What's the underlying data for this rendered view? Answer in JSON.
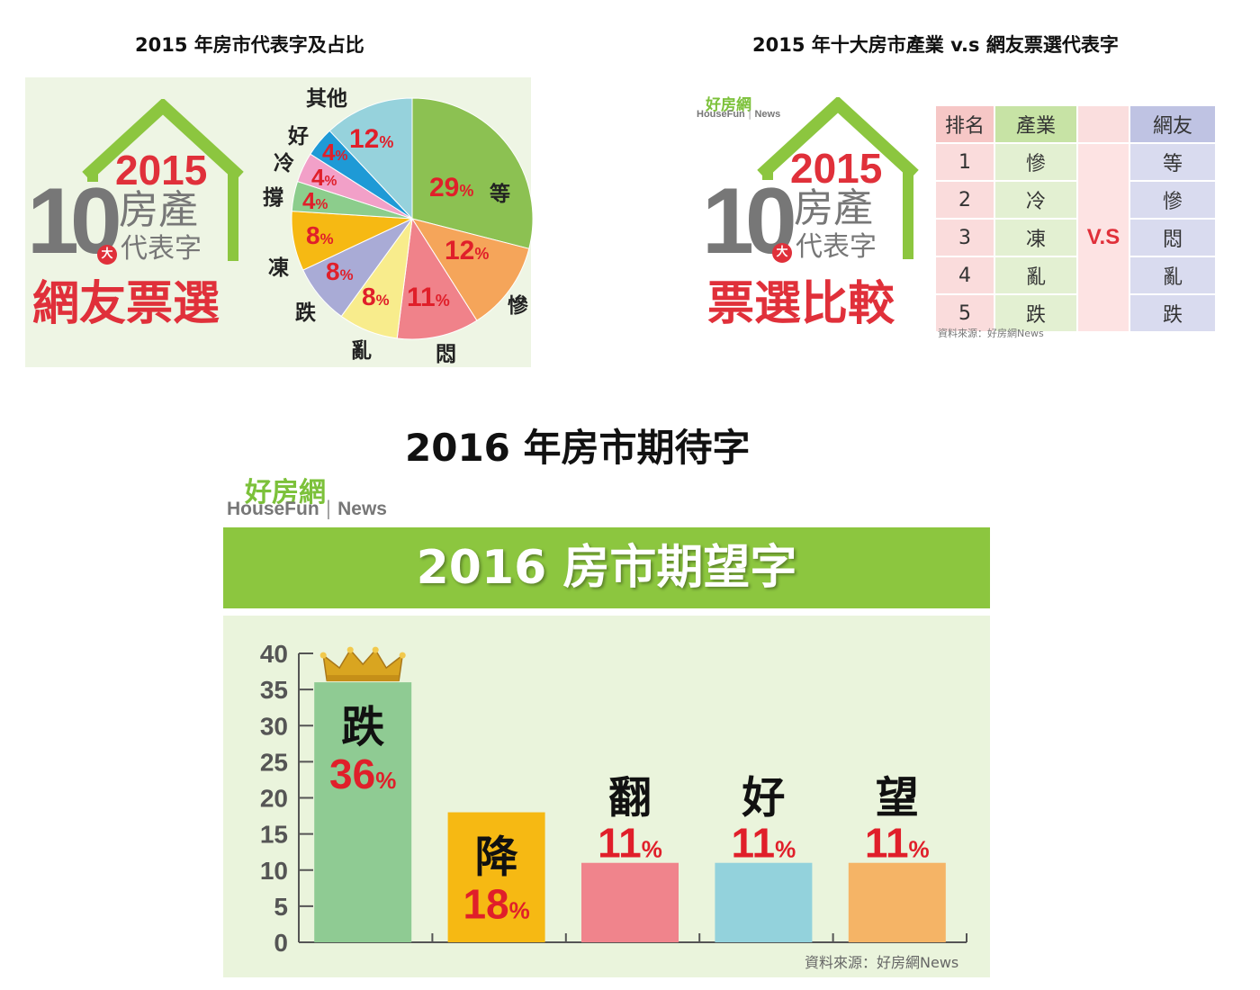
{
  "pie_panel": {
    "title": "2015 年房市代表字及占比",
    "badge": {
      "num": "10",
      "year": "2015",
      "line1": "房產",
      "line2": "代表字",
      "circle": "大",
      "caption": "網友票選"
    }
  },
  "table_panel": {
    "title": "2015 年十大房市產業 v.s 網友票選代表字",
    "logo_cn": "好房網",
    "logo_en": "HouseFun",
    "logo_news": "News",
    "badge": {
      "num": "10",
      "year": "2015",
      "line1": "房產",
      "line2": "代表字",
      "circle": "大",
      "caption": "票選比較"
    },
    "headers": [
      "排名",
      "產業",
      "",
      "網友"
    ],
    "vs": "V.S",
    "ranks": [
      "1",
      "2",
      "3",
      "4",
      "5"
    ],
    "industry": [
      "慘",
      "冷",
      "凍",
      "亂",
      "跌"
    ],
    "netizen": [
      "等",
      "慘",
      "悶",
      "亂",
      "跌"
    ],
    "source": "資料來源：好房網News"
  },
  "bar_panel": {
    "title": "2016 年房市期待字",
    "logo_cn": "好房網",
    "logo_en": "HouseFun",
    "logo_news": "News",
    "banner": "2016 房市期望字",
    "source": "資料來源：好房網News",
    "pct_unit": "%"
  },
  "chart_data": [
    {
      "type": "pie",
      "title": "2015 年房市代表字及占比",
      "slices": [
        {
          "label": "等",
          "value": 29,
          "color": "#8cc152"
        },
        {
          "label": "慘",
          "value": 12,
          "color": "#f5a55a"
        },
        {
          "label": "悶",
          "value": 11,
          "color": "#f0828a"
        },
        {
          "label": "亂",
          "value": 8,
          "color": "#f8ec8c"
        },
        {
          "label": "跌",
          "value": 8,
          "color": "#a9abd6"
        },
        {
          "label": "凍",
          "value": 8,
          "color": "#f6b913"
        },
        {
          "label": "撐",
          "value": 4,
          "color": "#8ccd8c"
        },
        {
          "label": "冷",
          "value": 4,
          "color": "#f2a0c8"
        },
        {
          "label": "好",
          "value": 4,
          "color": "#1e9ad6"
        },
        {
          "label": "其他",
          "value": 12,
          "color": "#96d2dc"
        }
      ]
    },
    {
      "type": "bar",
      "title": "2016 房市期望字",
      "categories": [
        "跌",
        "降",
        "翻",
        "好",
        "望"
      ],
      "values": [
        36,
        18,
        11,
        11,
        11
      ],
      "colors": [
        "#8fcb93",
        "#f6b913",
        "#f0848c",
        "#93d2dc",
        "#f5b466"
      ],
      "ylim": [
        0,
        40
      ],
      "yticks": [
        0,
        5,
        10,
        15,
        20,
        25,
        30,
        35,
        40
      ]
    }
  ]
}
